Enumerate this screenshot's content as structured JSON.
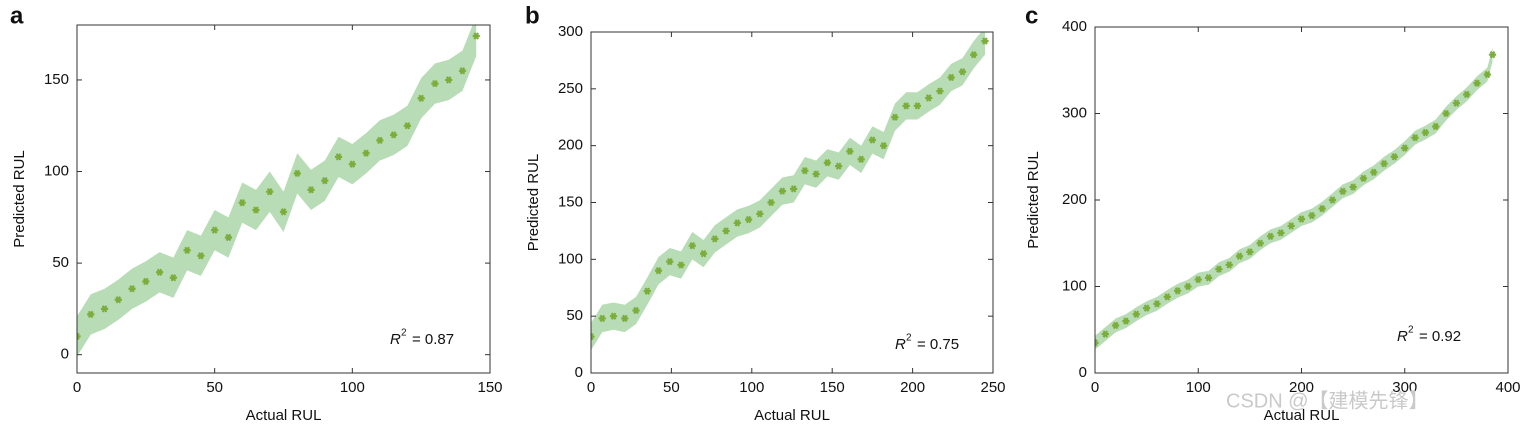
{
  "chart_data": [
    {
      "type": "scatter",
      "panel_label": "a",
      "x_label": "Actual RUL",
      "y_label": "Predicted RUL",
      "annotation": {
        "symbol": "R",
        "exponent": "2",
        "text": "= 0.87"
      },
      "xlim": [
        0,
        150
      ],
      "ylim": [
        -10,
        180
      ],
      "xticks": [
        0,
        50,
        100,
        150
      ],
      "yticks": [
        0,
        50,
        100,
        150
      ],
      "series": [
        {
          "color": "#7aad3a",
          "x": [
            0,
            5,
            10,
            15,
            20,
            25,
            30,
            35,
            40,
            45,
            50,
            55,
            60,
            65,
            70,
            75,
            80,
            85,
            90,
            95,
            100,
            105,
            110,
            115,
            120,
            125,
            130,
            135,
            140,
            145
          ],
          "values": [
            10,
            22,
            25,
            30,
            36,
            40,
            45,
            42,
            57,
            54,
            68,
            64,
            83,
            79,
            89,
            78,
            99,
            90,
            95,
            108,
            104,
            110,
            117,
            120,
            125,
            140,
            148,
            150,
            155,
            174
          ],
          "band": {
            "color": "#b8dcb6",
            "lower": [
              -1,
              11,
              14,
              19,
              25,
              29,
              34,
              31,
              46,
              43,
              57,
              53,
              72,
              68,
              78,
              67,
              88,
              79,
              84,
              97,
              93,
              99,
              106,
              109,
              114,
              129,
              137,
              139,
              144,
              163
            ],
            "upper": [
              21,
              33,
              36,
              41,
              47,
              51,
              56,
              53,
              68,
              65,
              79,
              75,
              94,
              90,
              100,
              89,
              110,
              101,
              106,
              119,
              115,
              121,
              128,
              131,
              136,
              151,
              159,
              161,
              166,
              185
            ]
          }
        }
      ]
    },
    {
      "type": "scatter",
      "panel_label": "b",
      "x_label": "Actual RUL",
      "y_label": "Predicted RUL",
      "annotation": {
        "symbol": "R",
        "exponent": "2",
        "text": "= 0.75"
      },
      "xlim": [
        0,
        250
      ],
      "ylim": [
        0,
        300
      ],
      "xticks": [
        0,
        50,
        100,
        150,
        200,
        250
      ],
      "yticks": [
        0,
        50,
        100,
        150,
        200,
        250,
        300
      ],
      "series": [
        {
          "color": "#7aad3a",
          "x": [
            0,
            7,
            14,
            21,
            28,
            35,
            42,
            49,
            56,
            63,
            70,
            77,
            84,
            91,
            98,
            105,
            112,
            119,
            126,
            133,
            140,
            147,
            154,
            161,
            168,
            175,
            182,
            189,
            196,
            203,
            210,
            217,
            224,
            231,
            238,
            245
          ],
          "values": [
            32,
            48,
            50,
            48,
            55,
            72,
            90,
            98,
            95,
            112,
            105,
            118,
            125,
            132,
            135,
            140,
            150,
            160,
            162,
            178,
            175,
            185,
            182,
            195,
            188,
            205,
            200,
            225,
            235,
            235,
            242,
            248,
            260,
            265,
            280,
            292
          ],
          "band": {
            "color": "#b8dcb6",
            "lower": [
              20,
              36,
              38,
              36,
              43,
              60,
              78,
              86,
              83,
              100,
              93,
              106,
              113,
              120,
              123,
              128,
              138,
              148,
              150,
              166,
              163,
              173,
              170,
              183,
              176,
              193,
              188,
              213,
              223,
              223,
              230,
              236,
              248,
              253,
              268,
              280
            ],
            "upper": [
              44,
              60,
              62,
              60,
              67,
              84,
              102,
              110,
              107,
              124,
              117,
              130,
              137,
              144,
              147,
              152,
              162,
              172,
              174,
              190,
              187,
              197,
              194,
              207,
              200,
              217,
              212,
              237,
              247,
              247,
              254,
              260,
              272,
              277,
              292,
              304
            ]
          }
        }
      ]
    },
    {
      "type": "scatter",
      "panel_label": "c",
      "x_label": "Actual RUL",
      "y_label": "Predicted RUL",
      "annotation": {
        "symbol": "R",
        "exponent": "2",
        "text": "= 0.92"
      },
      "xlim": [
        0,
        400
      ],
      "ylim": [
        0,
        400
      ],
      "xticks": [
        0,
        100,
        200,
        300,
        400
      ],
      "yticks": [
        0,
        100,
        200,
        300,
        400
      ],
      "series": [
        {
          "color": "#7aad3a",
          "x": [
            0,
            10,
            20,
            30,
            40,
            50,
            60,
            70,
            80,
            90,
            100,
            110,
            120,
            130,
            140,
            150,
            160,
            170,
            180,
            190,
            200,
            210,
            220,
            230,
            240,
            250,
            260,
            270,
            280,
            290,
            300,
            310,
            320,
            330,
            340,
            350,
            360,
            370,
            380,
            385
          ],
          "values": [
            35,
            45,
            55,
            60,
            68,
            75,
            80,
            88,
            95,
            100,
            108,
            110,
            120,
            125,
            135,
            140,
            150,
            158,
            162,
            170,
            178,
            182,
            190,
            200,
            210,
            215,
            225,
            232,
            242,
            250,
            260,
            272,
            278,
            285,
            300,
            312,
            322,
            335,
            345,
            368
          ],
          "band": {
            "color": "#b8dcb6",
            "lower": [
              27,
              37,
              47,
              52,
              60,
              67,
              72,
              80,
              87,
              92,
              100,
              102,
              112,
              117,
              127,
              132,
              142,
              150,
              154,
              162,
              170,
              174,
              182,
              192,
              202,
              207,
              217,
              224,
              234,
              242,
              252,
              264,
              270,
              277,
              292,
              304,
              314,
              327,
              337,
              360
            ],
            "upper": [
              43,
              53,
              63,
              68,
              76,
              83,
              88,
              96,
              103,
              108,
              116,
              118,
              128,
              133,
              143,
              148,
              158,
              166,
              170,
              178,
              186,
              190,
              198,
              208,
              218,
              223,
              233,
              240,
              250,
              258,
              268,
              280,
              286,
              293,
              308,
              320,
              330,
              343,
              353,
              376
            ]
          }
        }
      ]
    }
  ],
  "watermark": "CSDN @【建模先锋】"
}
